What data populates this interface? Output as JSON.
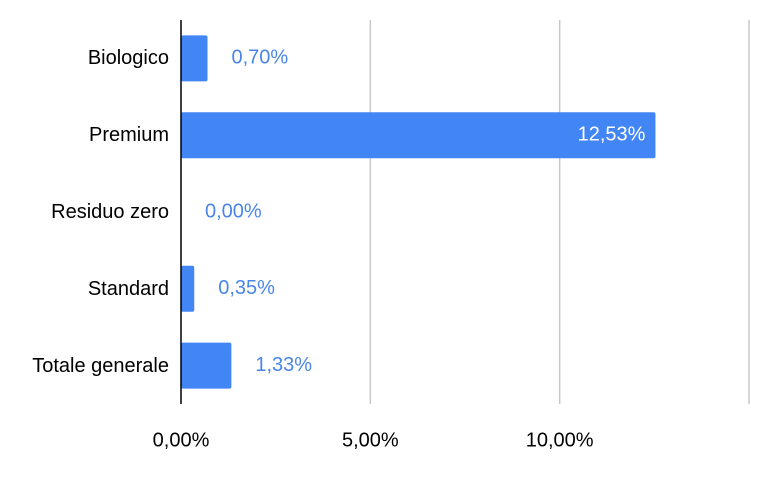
{
  "chart_data": {
    "type": "bar",
    "orientation": "horizontal",
    "categories": [
      "Biologico",
      "Premium",
      "Residuo zero",
      "Standard",
      "Totale generale"
    ],
    "values": [
      0.7,
      12.53,
      0,
      0.35,
      1.33
    ],
    "value_labels": [
      "0,70%",
      "12,53%",
      "0,00%",
      "0,35%",
      "1,33%"
    ],
    "color": "#4285f4",
    "xlim": [
      0,
      15
    ],
    "xticks": [
      {
        "value": 0,
        "label": "0,00%"
      },
      {
        "value": 5,
        "label": "5,00%"
      },
      {
        "value": 10,
        "label": "10,00%"
      }
    ],
    "grid": true
  }
}
